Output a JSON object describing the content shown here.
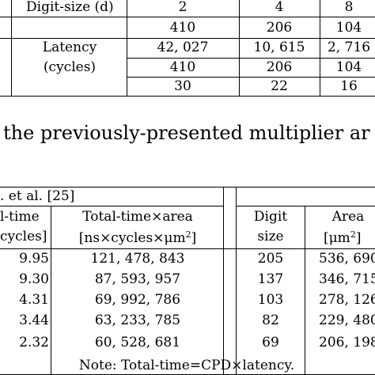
{
  "top_table": {
    "header_label": "Digit-size (d)",
    "digit_sizes": [
      "2",
      "4",
      "8"
    ],
    "row_label_line1": "Latency",
    "row_label_line2": "(cycles)",
    "rows": [
      [
        "410",
        "206",
        "104"
      ],
      [
        "42, 027",
        "10, 615",
        "2, 716"
      ],
      [
        "410",
        "206",
        "104"
      ],
      [
        "30",
        "22",
        "16"
      ]
    ]
  },
  "caption_text": "the previously-presented multiplier ar",
  "bottom_table": {
    "group_header": ". et al. [25]",
    "col_time_l1": "l-time",
    "col_time_l2": "cycles]",
    "col_ta_l1": "Total-time×area",
    "col_ta_l2_main": "[ns×cycles×μm",
    "col_ta_l2_sup": "2",
    "col_ta_l2_end": "]",
    "col_digit_l1": "Digit",
    "col_digit_l2": "size",
    "col_area_l1": "Area",
    "col_area_l2_main": "[μm",
    "col_area_l2_sup": "2",
    "col_area_l2_end": "]",
    "rows": [
      {
        "time": "9.95",
        "ta": "121, 478, 843",
        "digit": "205",
        "area": "536, 690"
      },
      {
        "time": "9.30",
        "ta": "87, 593, 957",
        "digit": "137",
        "area": "346, 715"
      },
      {
        "time": "4.31",
        "ta": "69, 992, 786",
        "digit": "103",
        "area": "278, 126"
      },
      {
        "time": "3.44",
        "ta": "63, 233, 785",
        "digit": "82",
        "area": "229, 480"
      },
      {
        "time": "2.32",
        "ta": "60, 528, 681",
        "digit": "69",
        "area": "206, 198"
      }
    ]
  },
  "note": "Note: Total-time=CPD×latency."
}
